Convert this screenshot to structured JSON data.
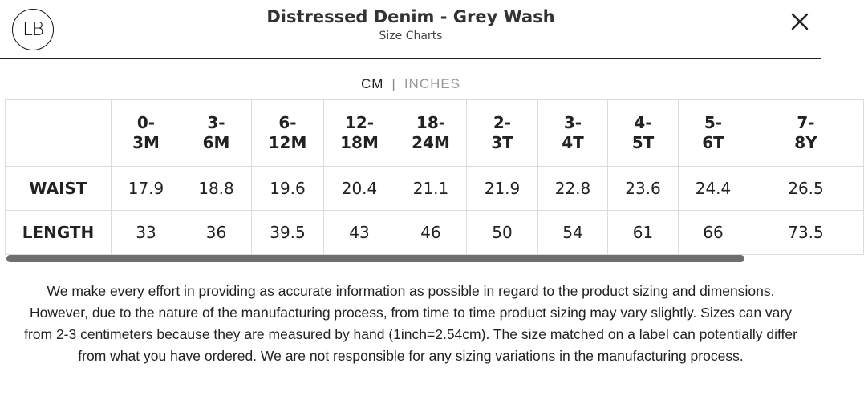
{
  "header": {
    "logo_text": "LB",
    "title": "Distressed Denim - Grey Wash",
    "subtitle": "Size Charts",
    "close_icon": "close-icon"
  },
  "units": {
    "cm": "CM",
    "separator": "|",
    "inches": "INCHES",
    "selected": "CM"
  },
  "table": {
    "sizes": [
      [
        "0-",
        "3M"
      ],
      [
        "3-",
        "6M"
      ],
      [
        "6-",
        "12M"
      ],
      [
        "12-",
        "18M"
      ],
      [
        "18-",
        "24M"
      ],
      [
        "2-",
        "3T"
      ],
      [
        "3-",
        "4T"
      ],
      [
        "4-",
        "5T"
      ],
      [
        "5-",
        "6T"
      ],
      [
        "7-",
        "8Y"
      ]
    ],
    "rows": [
      {
        "label": "WAIST",
        "values": [
          "17.9",
          "18.8",
          "19.6",
          "20.4",
          "21.1",
          "21.9",
          "22.8",
          "23.6",
          "24.4",
          "26.5"
        ]
      },
      {
        "label": "LENGTH",
        "values": [
          "33",
          "36",
          "39.5",
          "43",
          "46",
          "50",
          "54",
          "61",
          "66",
          "73.5"
        ]
      }
    ]
  },
  "disclaimer": "We make every effort in providing as accurate information as possible in regard to the product sizing and dimensions. However, due to the nature of the manufacturing process, from time to time product sizing may vary slightly. Sizes can vary from 2-3 centimeters because they are measured by hand (1inch=2.54cm). The size matched on a label can potentially differ from what you have ordered. We are not responsible for any sizing variations in the manufacturing process."
}
